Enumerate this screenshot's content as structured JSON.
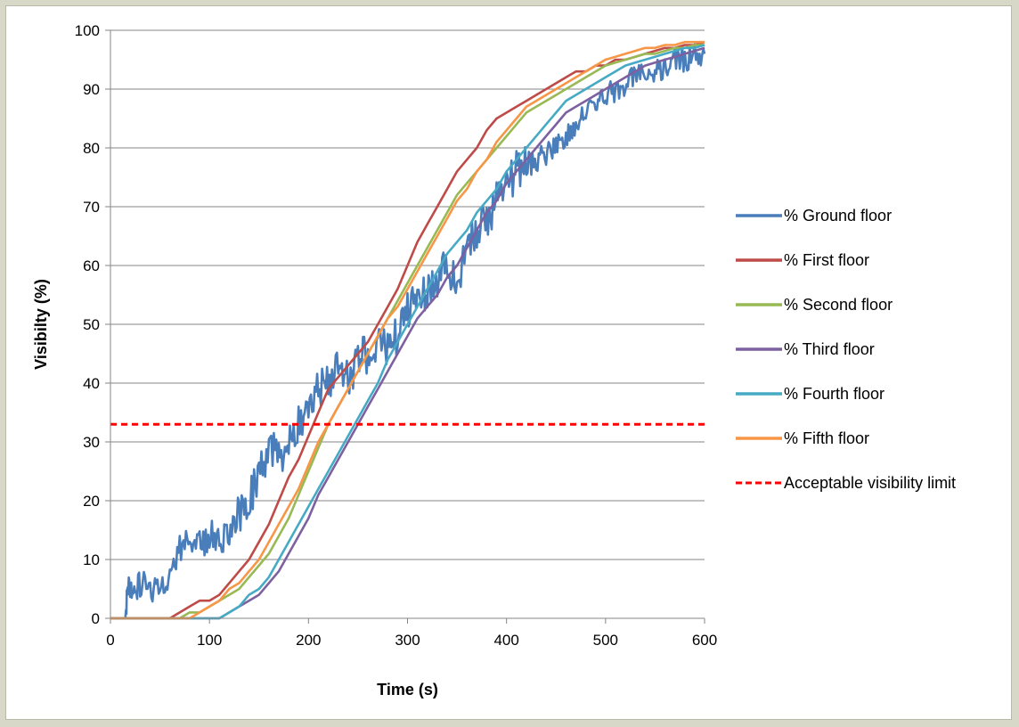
{
  "chart_data": {
    "type": "line",
    "title": "",
    "xlabel": "Time (s)",
    "ylabel": "Visibilty (%)",
    "xlim": [
      0,
      600
    ],
    "ylim": [
      0,
      100
    ],
    "xticks": [
      0,
      100,
      200,
      300,
      400,
      500,
      600
    ],
    "yticks": [
      0,
      10,
      20,
      30,
      40,
      50,
      60,
      70,
      80,
      90,
      100
    ],
    "grid": "horizontal",
    "legend_position": "right",
    "series": [
      {
        "name": "% Ground floor",
        "color": "#4a7ebb",
        "noisy": true,
        "x": [
          0,
          15,
          18,
          22,
          30,
          40,
          50,
          60,
          70,
          80,
          90,
          100,
          110,
          120,
          130,
          140,
          150,
          160,
          170,
          180,
          190,
          200,
          210,
          220,
          230,
          240,
          250,
          260,
          270,
          280,
          290,
          300,
          310,
          320,
          330,
          340,
          350,
          360,
          370,
          380,
          390,
          400,
          410,
          420,
          430,
          440,
          450,
          460,
          470,
          480,
          490,
          500,
          510,
          520,
          530,
          540,
          550,
          560,
          570,
          580,
          590,
          600
        ],
        "y": [
          0,
          0,
          7,
          3,
          6,
          5,
          6,
          7,
          12,
          13,
          13,
          13,
          14,
          16,
          18,
          20,
          24,
          29,
          27,
          31,
          33,
          37,
          39,
          41,
          42,
          41,
          44,
          45,
          47,
          46,
          48,
          52,
          54,
          56,
          58,
          60,
          56,
          64,
          66,
          68,
          71,
          74,
          76,
          77,
          78,
          79,
          81,
          82,
          84,
          86,
          88,
          89,
          90,
          91,
          92,
          93,
          93,
          94,
          95,
          95,
          96,
          96
        ]
      },
      {
        "name": "% First floor",
        "color": "#be4b48",
        "noisy": false,
        "x": [
          0,
          60,
          70,
          80,
          90,
          100,
          110,
          120,
          130,
          140,
          150,
          160,
          170,
          180,
          190,
          200,
          210,
          220,
          230,
          240,
          250,
          260,
          270,
          280,
          290,
          300,
          310,
          320,
          330,
          340,
          350,
          360,
          370,
          380,
          390,
          400,
          410,
          420,
          430,
          440,
          450,
          460,
          470,
          480,
          490,
          500,
          510,
          520,
          530,
          540,
          550,
          560,
          570,
          580,
          590,
          600
        ],
        "y": [
          0,
          0,
          1,
          2,
          3,
          3,
          4,
          6,
          8,
          10,
          13,
          16,
          20,
          24,
          27,
          31,
          35,
          39,
          41,
          43,
          45,
          47,
          50,
          53,
          56,
          60,
          64,
          67,
          70,
          73,
          76,
          78,
          80,
          83,
          85,
          86,
          87,
          88,
          89,
          90,
          91,
          92,
          93,
          93,
          94,
          94,
          95,
          95,
          95.5,
          96,
          96.5,
          97,
          97,
          97.5,
          97.5,
          98
        ]
      },
      {
        "name": "% Second floor",
        "color": "#98b954",
        "noisy": false,
        "x": [
          0,
          70,
          80,
          90,
          100,
          110,
          120,
          130,
          140,
          150,
          160,
          170,
          180,
          190,
          200,
          210,
          220,
          230,
          240,
          250,
          260,
          270,
          280,
          290,
          300,
          310,
          320,
          330,
          340,
          350,
          360,
          370,
          380,
          390,
          400,
          410,
          420,
          430,
          440,
          450,
          460,
          470,
          480,
          490,
          500,
          510,
          520,
          530,
          540,
          550,
          560,
          570,
          580,
          590,
          600
        ],
        "y": [
          0,
          0,
          1,
          1,
          2,
          3,
          4,
          5,
          7,
          9,
          11,
          14,
          17,
          21,
          25,
          29,
          33,
          36,
          39,
          42,
          45,
          48,
          51,
          54,
          57,
          60,
          63,
          66,
          69,
          72,
          74,
          76,
          78,
          80,
          82,
          84,
          86,
          87,
          88,
          89,
          90,
          91,
          92,
          93,
          94,
          94.5,
          95,
          95.5,
          96,
          96,
          96.5,
          97,
          97,
          97.5,
          97.5
        ]
      },
      {
        "name": "% Third floor",
        "color": "#7d60a0",
        "noisy": false,
        "x": [
          0,
          100,
          110,
          120,
          130,
          140,
          150,
          160,
          170,
          180,
          190,
          200,
          210,
          220,
          230,
          240,
          250,
          260,
          270,
          280,
          290,
          300,
          310,
          320,
          330,
          340,
          350,
          360,
          370,
          380,
          390,
          400,
          410,
          420,
          430,
          440,
          450,
          460,
          470,
          480,
          490,
          500,
          510,
          520,
          530,
          540,
          550,
          560,
          570,
          580,
          590,
          600
        ],
        "y": [
          0,
          0,
          0,
          1,
          2,
          3,
          4,
          6,
          8,
          11,
          14,
          17,
          21,
          24,
          27,
          30,
          33,
          36,
          39,
          42,
          45,
          48,
          51,
          53,
          55,
          58,
          60,
          63,
          66,
          69,
          71,
          74,
          76,
          78,
          80,
          82,
          84,
          86,
          87,
          88,
          89,
          90,
          91,
          92,
          93,
          94,
          94.5,
          95,
          95.5,
          96,
          96.5,
          97
        ]
      },
      {
        "name": "% Fourth floor",
        "color": "#46aac5",
        "noisy": false,
        "x": [
          0,
          100,
          110,
          120,
          130,
          140,
          150,
          160,
          170,
          180,
          190,
          200,
          210,
          220,
          230,
          240,
          250,
          260,
          270,
          280,
          290,
          300,
          310,
          320,
          330,
          340,
          350,
          360,
          370,
          380,
          390,
          400,
          410,
          420,
          430,
          440,
          450,
          460,
          470,
          480,
          490,
          500,
          510,
          520,
          530,
          540,
          550,
          560,
          570,
          580,
          590,
          600
        ],
        "y": [
          0,
          0,
          0,
          1,
          2,
          4,
          5,
          7,
          10,
          13,
          16,
          19,
          22,
          25,
          28,
          31,
          34,
          37,
          40,
          44,
          47,
          50,
          53,
          56,
          59,
          62,
          64,
          66,
          69,
          71,
          73,
          76,
          78,
          80,
          82,
          84,
          86,
          88,
          89,
          90,
          91,
          92,
          93,
          94,
          94.5,
          95,
          95.5,
          96,
          96.5,
          97,
          97,
          97.5
        ]
      },
      {
        "name": "% Fifth floor",
        "color": "#f79646",
        "noisy": false,
        "x": [
          0,
          80,
          90,
          100,
          110,
          120,
          130,
          140,
          150,
          160,
          170,
          180,
          190,
          200,
          210,
          220,
          230,
          240,
          250,
          260,
          270,
          280,
          290,
          300,
          310,
          320,
          330,
          340,
          350,
          360,
          370,
          380,
          390,
          400,
          410,
          420,
          430,
          440,
          450,
          460,
          470,
          480,
          490,
          500,
          510,
          520,
          530,
          540,
          550,
          560,
          570,
          580,
          590,
          600
        ],
        "y": [
          0,
          0,
          1,
          2,
          3,
          5,
          6,
          8,
          10,
          13,
          16,
          19,
          22,
          26,
          30,
          33,
          36,
          39,
          42,
          45,
          48,
          51,
          53,
          56,
          59,
          62,
          65,
          68,
          71,
          73,
          76,
          78,
          81,
          83,
          85,
          87,
          88,
          89,
          90,
          91,
          92,
          93,
          94,
          95,
          95.5,
          96,
          96.5,
          97,
          97,
          97.5,
          97.5,
          98,
          98,
          98
        ]
      },
      {
        "name": "Acceptable visibility limit",
        "color": "#ff0000",
        "dashed": true,
        "noisy": false,
        "x": [
          0,
          600
        ],
        "y": [
          33,
          33
        ]
      }
    ]
  }
}
